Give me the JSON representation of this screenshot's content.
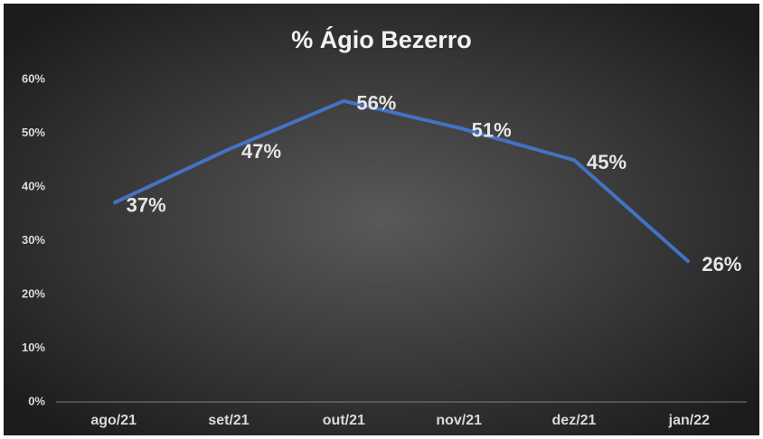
{
  "chart_data": {
    "type": "line",
    "title": "% Ágio Bezerro",
    "categories": [
      "ago/21",
      "set/21",
      "out/21",
      "nov/21",
      "dez/21",
      "jan/22"
    ],
    "series": [
      {
        "name": "% Ágio Bezerro",
        "color": "#4472c4",
        "values": [
          37,
          47,
          56,
          51,
          45,
          26
        ],
        "value_labels": [
          "37%",
          "47%",
          "56%",
          "51%",
          "45%",
          "26%"
        ]
      }
    ],
    "ylim": [
      0,
      60
    ],
    "yticks": [
      {
        "value": 0,
        "label": "0%"
      },
      {
        "value": 10,
        "label": "10%"
      },
      {
        "value": 20,
        "label": "20%"
      },
      {
        "value": 30,
        "label": "30%"
      },
      {
        "value": 40,
        "label": "40%"
      },
      {
        "value": 50,
        "label": "50%"
      },
      {
        "value": 60,
        "label": "60%"
      }
    ],
    "grid": false
  }
}
